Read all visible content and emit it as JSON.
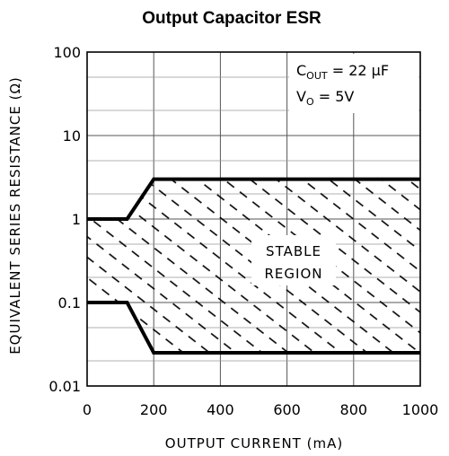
{
  "chart_data": {
    "type": "area",
    "title": "Output Capacitor ESR",
    "xlabel": "OUTPUT CURRENT (mA)",
    "ylabel": "EQUIVALENT SERIES RESISTANCE (Ω)",
    "xlim": [
      0,
      1000
    ],
    "ylim": [
      0.01,
      100
    ],
    "yscale": "log",
    "grid": true,
    "x_ticks": [
      {
        "value": 0,
        "label": "0"
      },
      {
        "value": 200,
        "label": "200"
      },
      {
        "value": 400,
        "label": "400"
      },
      {
        "value": 600,
        "label": "600"
      },
      {
        "value": 800,
        "label": "800"
      },
      {
        "value": 1000,
        "label": "1000"
      }
    ],
    "y_ticks": [
      {
        "value": 0.01,
        "label": "0.01"
      },
      {
        "value": 0.1,
        "label": "0.1"
      },
      {
        "value": 1,
        "label": "1"
      },
      {
        "value": 10,
        "label": "10"
      },
      {
        "value": 100,
        "label": "100"
      }
    ],
    "series": [
      {
        "x": [
          0,
          120,
          200,
          1000
        ],
        "y": [
          1.0,
          1.0,
          3.0,
          3.0
        ]
      },
      {
        "x": [
          0,
          120,
          200,
          1000
        ],
        "y": [
          0.1,
          0.1,
          0.025,
          0.025
        ]
      }
    ],
    "annotations": {
      "cout_main": "C",
      "cout_sub": "OUT",
      "cout_value": " = 22 μF",
      "vo_main": "V",
      "vo_sub": "O",
      "vo_value": " = 5V",
      "region_line1": "STABLE",
      "region_line2": "REGION"
    }
  }
}
